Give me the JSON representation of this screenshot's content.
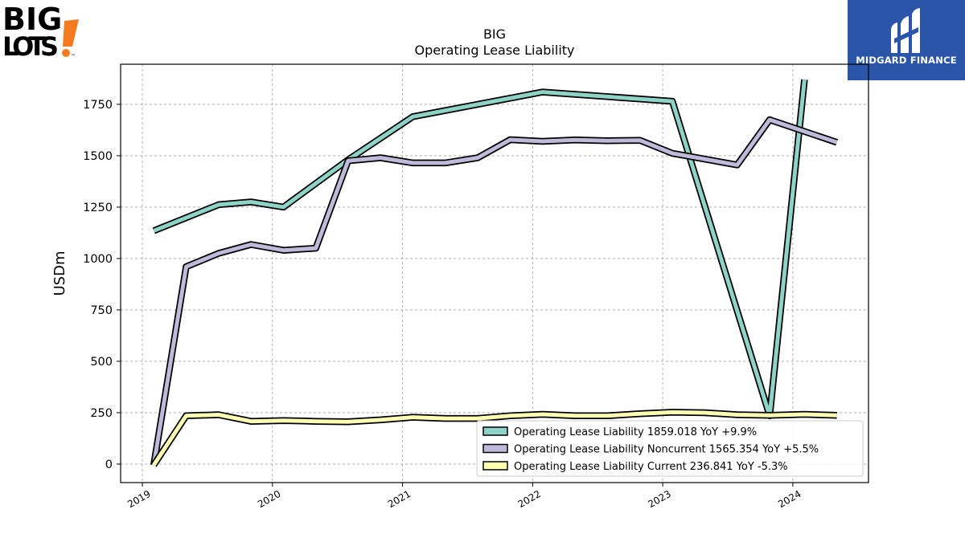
{
  "brand_logo": {
    "line1": "BIG",
    "line2": "LOTS",
    "mark": "!",
    "tm": "™"
  },
  "partner_logo": {
    "name": "MIDGARD FINANCE",
    "bg": "#2a55a8"
  },
  "chart_data": {
    "type": "line",
    "title": "BIG",
    "subtitle": "Operating Lease Liability",
    "xlabel": "",
    "ylabel": "USDm",
    "xlim": [
      "2018-11-01",
      "2024-08-01"
    ],
    "ylim": [
      -90,
      1945
    ],
    "yticks": [
      0,
      250,
      500,
      750,
      1000,
      1250,
      1500,
      1750
    ],
    "xticks": [
      "2019",
      "2020",
      "2021",
      "2022",
      "2023",
      "2024"
    ],
    "grid": true,
    "legend_position": "lower-right",
    "series": [
      {
        "name": "Operating Lease Liability  1859.018 YoY +9.9%",
        "color": "#8dd3c7",
        "points": [
          [
            "2019-02-02",
            1135
          ],
          [
            "2019-08-03",
            1262
          ],
          [
            "2019-11-02",
            1275
          ],
          [
            "2020-02-01",
            1250
          ],
          [
            "2020-08-01",
            1480
          ],
          [
            "2021-01-30",
            1690
          ],
          [
            "2022-01-29",
            1810
          ],
          [
            "2023-01-28",
            1765
          ],
          [
            "2023-10-28",
            235
          ],
          [
            "2024-02-03",
            1870
          ]
        ]
      },
      {
        "name": "Operating Lease Liability Noncurrent  1565.354 YoY +5.5%",
        "color": "#bebada",
        "points": [
          [
            "2019-02-02",
            -5
          ],
          [
            "2019-05-04",
            960
          ],
          [
            "2019-08-03",
            1025
          ],
          [
            "2019-11-02",
            1068
          ],
          [
            "2020-02-01",
            1040
          ],
          [
            "2020-05-02",
            1050
          ],
          [
            "2020-08-01",
            1475
          ],
          [
            "2020-10-31",
            1490
          ],
          [
            "2021-01-30",
            1465
          ],
          [
            "2021-05-01",
            1465
          ],
          [
            "2021-07-31",
            1490
          ],
          [
            "2021-10-30",
            1578
          ],
          [
            "2022-01-29",
            1570
          ],
          [
            "2022-04-30",
            1577
          ],
          [
            "2022-07-30",
            1573
          ],
          [
            "2022-10-29",
            1575
          ],
          [
            "2023-01-28",
            1512
          ],
          [
            "2023-07-29",
            1455
          ],
          [
            "2023-10-28",
            1675
          ],
          [
            "2024-05-04",
            1565
          ]
        ]
      },
      {
        "name": "Operating Lease Liability Current  236.841 YoY -5.3%",
        "color": "#ffffb3",
        "points": [
          [
            "2019-02-02",
            -5
          ],
          [
            "2019-05-04",
            235
          ],
          [
            "2019-08-03",
            240
          ],
          [
            "2019-11-02",
            208
          ],
          [
            "2020-02-01",
            212
          ],
          [
            "2020-05-02",
            208
          ],
          [
            "2020-08-01",
            206
          ],
          [
            "2020-10-31",
            215
          ],
          [
            "2021-01-30",
            228
          ],
          [
            "2021-05-01",
            222
          ],
          [
            "2021-07-31",
            222
          ],
          [
            "2021-10-30",
            235
          ],
          [
            "2022-01-29",
            242
          ],
          [
            "2022-04-30",
            235
          ],
          [
            "2022-07-30",
            235
          ],
          [
            "2022-10-29",
            245
          ],
          [
            "2023-01-28",
            252
          ],
          [
            "2023-04-29",
            250
          ],
          [
            "2023-07-29",
            240
          ],
          [
            "2023-10-28",
            237
          ],
          [
            "2024-02-03",
            242
          ],
          [
            "2024-05-04",
            237
          ]
        ]
      }
    ]
  }
}
